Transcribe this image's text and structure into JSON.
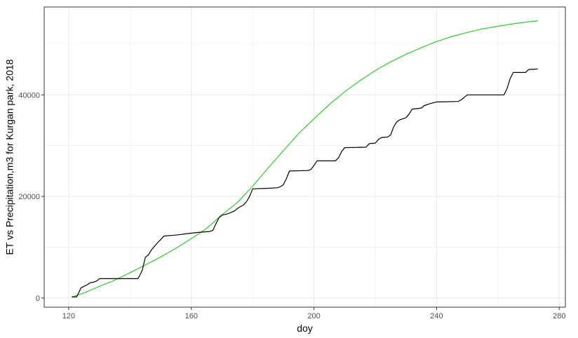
{
  "chart_data": {
    "type": "line",
    "xlabel": "doy",
    "ylabel": "ET vs Precipitation,m3 for Kurgan park, 2018",
    "xlim": [
      112,
      282
    ],
    "ylim": [
      -1800,
      57300
    ],
    "x_ticks": [
      120,
      160,
      200,
      240,
      280
    ],
    "x_tick_labels": [
      "120",
      "160",
      "200",
      "240",
      "280"
    ],
    "y_ticks": [
      0,
      20000,
      40000
    ],
    "y_tick_labels": [
      "0",
      "20000",
      "40000"
    ],
    "grid": true,
    "legend": "none",
    "colors": {
      "green_series": "#33cc33",
      "black_series": "#000000",
      "grid": "#ebebeb",
      "panel_border": "#333333"
    },
    "series": [
      {
        "color": "green",
        "x": [
          121,
          125,
          130,
          135,
          140,
          145,
          150,
          155,
          160,
          165,
          170,
          175,
          180,
          185,
          190,
          195,
          200,
          205,
          210,
          215,
          220,
          225,
          230,
          235,
          240,
          245,
          250,
          255,
          260,
          265,
          270,
          273
        ],
        "values": [
          200,
          1000,
          2300,
          3500,
          5000,
          6500,
          8100,
          9800,
          11700,
          13700,
          16400,
          18800,
          22000,
          25600,
          29000,
          32400,
          35300,
          38100,
          40600,
          42800,
          44800,
          46500,
          48000,
          49300,
          50500,
          51500,
          52300,
          53000,
          53500,
          54000,
          54400,
          54600
        ]
      },
      {
        "color": "black",
        "x": [
          121,
          122.5,
          123,
          124,
          125,
          126,
          127,
          128,
          129,
          130,
          140,
          142.5,
          143,
          144,
          145,
          146,
          147,
          148,
          149,
          150,
          151,
          155,
          159,
          162,
          166,
          167,
          168,
          169,
          170,
          172,
          174,
          175,
          176,
          177,
          178,
          179,
          180,
          185,
          188,
          189,
          190,
          191,
          192,
          198,
          199,
          200,
          201,
          207,
          208,
          209,
          210,
          217,
          218,
          220,
          221,
          222,
          224,
          225,
          226,
          227,
          228,
          229,
          230,
          231,
          232,
          235,
          236,
          238,
          240,
          247,
          248,
          249,
          250,
          257,
          262,
          263,
          264,
          265,
          269,
          270,
          273
        ],
        "values": [
          200,
          200,
          700,
          2000,
          2300,
          2600,
          3000,
          3100,
          3300,
          3800,
          3800,
          3800,
          4200,
          5500,
          8000,
          8500,
          9500,
          10200,
          10900,
          11500,
          12200,
          12400,
          12700,
          12900,
          13100,
          13300,
          14600,
          15800,
          16300,
          16600,
          17100,
          17600,
          18000,
          18300,
          19000,
          20000,
          21500,
          21600,
          21700,
          21900,
          22300,
          23500,
          25000,
          25100,
          25300,
          26100,
          27000,
          27000,
          27600,
          28800,
          29600,
          29700,
          30400,
          30500,
          31200,
          31600,
          31700,
          32100,
          33700,
          34700,
          35100,
          35300,
          35500,
          36200,
          37200,
          37400,
          37900,
          38300,
          38600,
          38700,
          39000,
          39500,
          40000,
          40000,
          40000,
          41300,
          43200,
          44400,
          44400,
          45000,
          45100
        ]
      }
    ]
  }
}
